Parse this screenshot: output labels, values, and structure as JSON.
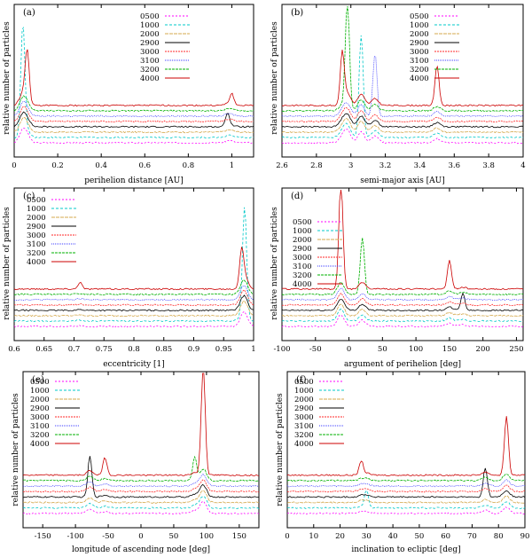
{
  "chart_data": [
    {
      "type": "line",
      "panel_label": "(a)",
      "xlabel": "perihelion distance [AU]",
      "ylabel": "relative number of particles",
      "xlim": [
        0,
        1.1
      ],
      "xticks": [
        0,
        0.2,
        0.4,
        0.6,
        0.8,
        1
      ],
      "xtick_labels": [
        "0",
        "0.2",
        "0.4",
        "0.6",
        "0.8",
        "1"
      ],
      "legend": [
        "0500",
        "1000",
        "2000",
        "2900",
        "3000",
        "3100",
        "3200",
        "4000"
      ],
      "peaks": [
        {
          "series": "1000",
          "x": 0.04,
          "height": 0.98
        },
        {
          "series": "4000",
          "x": 0.06,
          "height": 0.45
        },
        {
          "series": "4000",
          "x": 1.0,
          "height": 0.1
        },
        {
          "series": "2900",
          "x": 0.98,
          "height": 0.12
        }
      ]
    },
    {
      "type": "line",
      "panel_label": "(b)",
      "xlabel": "semi-major axis [AU]",
      "ylabel": "relative number of particles",
      "xlim": [
        2.6,
        4.0
      ],
      "xticks": [
        2.6,
        2.8,
        3,
        3.2,
        3.4,
        3.6,
        3.8,
        4
      ],
      "xtick_labels": [
        "2.6",
        "2.8",
        "3",
        "3.2",
        "3.4",
        "3.6",
        "3.8",
        "4"
      ],
      "legend": [
        "0500",
        "1000",
        "2000",
        "2900",
        "3000",
        "3100",
        "3200",
        "4000"
      ],
      "peaks": [
        {
          "series": "3200",
          "x": 2.98,
          "height": 0.95
        },
        {
          "series": "1000",
          "x": 3.06,
          "height": 0.9
        },
        {
          "series": "4000",
          "x": 2.95,
          "height": 0.45
        },
        {
          "series": "4000",
          "x": 3.5,
          "height": 0.35
        },
        {
          "series": "3100",
          "x": 3.14,
          "height": 0.55
        }
      ]
    },
    {
      "type": "line",
      "panel_label": "(c)",
      "xlabel": "eccentricity [1]",
      "ylabel": "relative number of particles",
      "xlim": [
        0.6,
        1.0
      ],
      "xticks": [
        0.6,
        0.65,
        0.7,
        0.75,
        0.8,
        0.85,
        0.9,
        0.95,
        1
      ],
      "xtick_labels": [
        "0.6",
        "0.65",
        "0.7",
        "0.75",
        "0.8",
        "0.85",
        "0.9",
        "0.95",
        "1"
      ],
      "legend": [
        "0500",
        "1000",
        "2000",
        "2900",
        "3000",
        "3100",
        "3200",
        "4000"
      ],
      "peaks": [
        {
          "series": "1000",
          "x": 0.985,
          "height": 0.98
        },
        {
          "series": "4000",
          "x": 0.98,
          "height": 0.3
        },
        {
          "series": "4000",
          "x": 0.71,
          "height": 0.06
        }
      ]
    },
    {
      "type": "line",
      "panel_label": "(d)",
      "xlabel": "argument of perihelion [deg]",
      "ylabel": "relative number of particles",
      "xlim": [
        -100,
        260
      ],
      "xticks": [
        -100,
        -50,
        0,
        50,
        100,
        150,
        200,
        250
      ],
      "xtick_labels": [
        "-100",
        "-50",
        "0",
        "50",
        "100",
        "150",
        "200",
        "250"
      ],
      "legend": [
        "0500",
        "1000",
        "2000",
        "2900",
        "3000",
        "3100",
        "3200",
        "4000"
      ],
      "peaks": [
        {
          "series": "4000",
          "x": -12,
          "height": 0.95
        },
        {
          "series": "3200",
          "x": 20,
          "height": 0.5
        },
        {
          "series": "4000",
          "x": 150,
          "height": 0.25
        },
        {
          "series": "2900",
          "x": 170,
          "height": 0.15
        }
      ]
    },
    {
      "type": "line",
      "panel_label": "(e)",
      "xlabel": "longitude of ascending node [deg]",
      "ylabel": "relative number of particles",
      "xlim": [
        -180,
        180
      ],
      "xticks": [
        -150,
        -100,
        -50,
        0,
        50,
        100,
        150
      ],
      "xtick_labels": [
        "-150",
        "-100",
        "-50",
        "0",
        "50",
        "100",
        "150"
      ],
      "legend": [
        "0500",
        "1000",
        "2000",
        "2900",
        "3000",
        "3100",
        "3200",
        "4000"
      ],
      "peaks": [
        {
          "series": "4000",
          "x": 95,
          "height": 0.95
        },
        {
          "series": "2900",
          "x": -78,
          "height": 0.35
        },
        {
          "series": "4000",
          "x": -55,
          "height": 0.15
        },
        {
          "series": "3200",
          "x": 82,
          "height": 0.2
        }
      ]
    },
    {
      "type": "line",
      "panel_label": "(f)",
      "xlabel": "inclination to ecliptic [deg]",
      "ylabel": "relative number of particles",
      "xlim": [
        0,
        90
      ],
      "xticks": [
        0,
        10,
        20,
        30,
        40,
        50,
        60,
        70,
        80,
        90
      ],
      "xtick_labels": [
        "0",
        "10",
        "20",
        "30",
        "40",
        "50",
        "60",
        "70",
        "80",
        "90"
      ],
      "legend": [
        "0500",
        "1000",
        "2000",
        "2900",
        "3000",
        "3100",
        "3200",
        "4000"
      ],
      "peaks": [
        {
          "series": "4000",
          "x": 83,
          "height": 0.5
        },
        {
          "series": "2900",
          "x": 75,
          "height": 0.25
        },
        {
          "series": "4000",
          "x": 28,
          "height": 0.12
        },
        {
          "series": "1000",
          "x": 30,
          "height": 0.15
        }
      ]
    }
  ],
  "series_colors": {
    "0500": "#ff00ff",
    "1000": "#00c8c8",
    "2000": "#d4a84c",
    "2900": "#000000",
    "3000": "#ff2a2a",
    "3100": "#3b3bff",
    "3200": "#00b000",
    "4000": "#cc0000"
  }
}
